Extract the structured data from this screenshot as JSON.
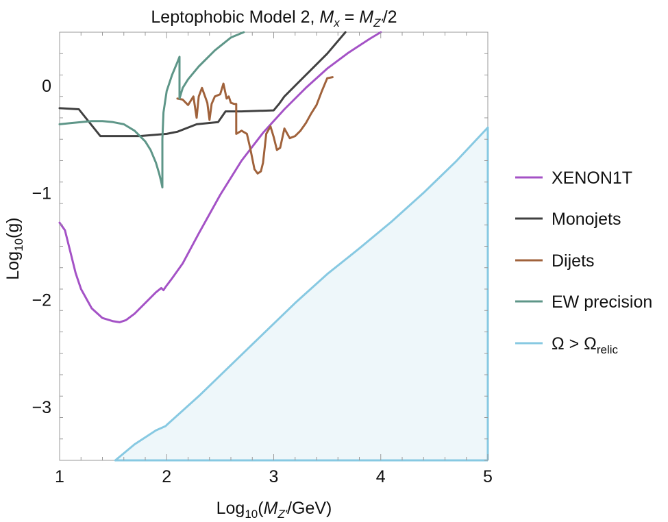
{
  "chart_data": {
    "type": "line",
    "title": {
      "prefix": "Leptophobic Model 2, ",
      "mx_base": "M",
      "mx_sub": "x",
      "equals": " = ",
      "mz_base": "M",
      "mz_sub": "Z'",
      "suffix": "/2"
    },
    "xlabel": {
      "pre": "Log",
      "sub": "10",
      "open": "(",
      "m_base": "M",
      "m_sub": "Z'",
      "rest": "/GeV)"
    },
    "ylabel": {
      "pre": "Log",
      "sub": "10",
      "rest": "(g)"
    },
    "xlim": [
      1,
      5
    ],
    "ylim": [
      -3.5,
      0.5
    ],
    "xticks": [
      1,
      2,
      3,
      4,
      5
    ],
    "xtick_labels": [
      "1",
      "2",
      "3",
      "4",
      "5"
    ],
    "yticks": [
      0,
      -1,
      -2,
      -3
    ],
    "ytick_labels": [
      "0",
      "−1",
      "−2",
      "−3"
    ],
    "grid": false,
    "legend_position": "right",
    "series": [
      {
        "key": "xenon",
        "name": "XENON1T",
        "color": "#a452c6",
        "x": [
          1.0,
          1.05,
          1.1,
          1.15,
          1.2,
          1.3,
          1.4,
          1.5,
          1.56,
          1.62,
          1.7,
          1.8,
          1.9,
          1.95,
          1.97,
          1.99,
          2.05,
          2.15,
          2.3,
          2.5,
          2.7,
          2.9,
          3.1,
          3.3,
          3.5,
          3.7,
          3.9,
          4.0
        ],
        "y": [
          -1.28,
          -1.35,
          -1.55,
          -1.75,
          -1.9,
          -2.08,
          -2.17,
          -2.2,
          -2.21,
          -2.19,
          -2.13,
          -2.03,
          -1.93,
          -1.89,
          -1.91,
          -1.88,
          -1.8,
          -1.66,
          -1.38,
          -1.02,
          -0.7,
          -0.44,
          -0.22,
          -0.02,
          0.16,
          0.31,
          0.44,
          0.5
        ]
      },
      {
        "key": "monojets",
        "name": "Monojets",
        "color": "#404040",
        "x": [
          1.0,
          1.18,
          1.38,
          1.55,
          1.75,
          2.0,
          2.1,
          2.28,
          2.48,
          2.55,
          2.7,
          3.0,
          3.05,
          3.1,
          3.2,
          3.5,
          3.67
        ],
        "y": [
          -0.21,
          -0.22,
          -0.47,
          -0.47,
          -0.47,
          -0.45,
          -0.43,
          -0.36,
          -0.34,
          -0.24,
          -0.24,
          -0.23,
          -0.17,
          -0.1,
          0.0,
          0.3,
          0.5
        ]
      },
      {
        "key": "dijets",
        "name": "Dijets",
        "color": "#a0623b",
        "x": [
          2.1,
          2.15,
          2.2,
          2.25,
          2.28,
          2.3,
          2.33,
          2.38,
          2.4,
          2.42,
          2.45,
          2.5,
          2.53,
          2.56,
          2.58,
          2.6,
          2.63,
          2.65,
          2.65,
          2.7,
          2.75,
          2.78,
          2.82,
          2.85,
          2.88,
          2.9,
          2.93,
          2.97,
          3.0,
          3.03,
          3.06,
          3.1,
          3.15,
          3.2,
          3.25,
          3.3,
          3.35,
          3.4,
          3.45,
          3.5,
          3.55
        ],
        "y": [
          -0.12,
          -0.13,
          -0.18,
          -0.1,
          -0.3,
          -0.1,
          -0.02,
          -0.16,
          -0.32,
          -0.17,
          -0.1,
          -0.08,
          0.02,
          -0.12,
          -0.1,
          -0.16,
          -0.17,
          -0.17,
          -0.45,
          -0.42,
          -0.45,
          -0.58,
          -0.78,
          -0.82,
          -0.8,
          -0.72,
          -0.45,
          -0.38,
          -0.48,
          -0.6,
          -0.58,
          -0.4,
          -0.49,
          -0.47,
          -0.42,
          -0.35,
          -0.26,
          -0.18,
          -0.05,
          0.07,
          0.08
        ]
      },
      {
        "key": "ew",
        "name": "EW precision",
        "color": "#5e9688",
        "x": [
          1.0,
          1.1,
          1.2,
          1.3,
          1.4,
          1.5,
          1.6,
          1.7,
          1.8,
          1.85,
          1.9,
          1.93,
          1.95,
          1.96,
          1.96,
          1.97,
          2.0,
          2.05,
          2.1,
          2.12,
          2.12,
          2.15,
          2.2,
          2.3,
          2.45,
          2.6,
          2.72
        ],
        "y": [
          -0.36,
          -0.35,
          -0.34,
          -0.33,
          -0.33,
          -0.34,
          -0.36,
          -0.42,
          -0.52,
          -0.6,
          -0.72,
          -0.82,
          -0.9,
          -0.95,
          -0.5,
          -0.25,
          -0.05,
          0.1,
          0.22,
          0.27,
          -0.12,
          -0.02,
          0.06,
          0.18,
          0.33,
          0.45,
          0.5
        ]
      },
      {
        "key": "relic",
        "name": "Ω > Ωrelic",
        "label_base": "Ω > Ω",
        "label_sub": "relic",
        "color": "#87c9e2",
        "fill": "#eef7fa",
        "x": [
          1.52,
          1.7,
          1.9,
          1.99,
          2.0,
          2.3,
          2.6,
          2.9,
          3.2,
          3.5,
          3.8,
          4.1,
          4.4,
          4.7,
          5.0
        ],
        "y": [
          -3.5,
          -3.35,
          -3.22,
          -3.18,
          -3.17,
          -2.9,
          -2.61,
          -2.32,
          -2.03,
          -1.76,
          -1.52,
          -1.27,
          -1.0,
          -0.71,
          -0.39
        ]
      }
    ]
  }
}
